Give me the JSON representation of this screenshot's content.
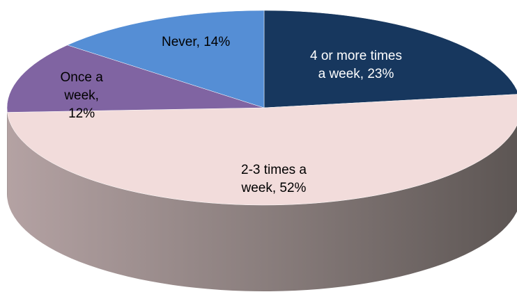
{
  "chart_data": {
    "type": "pie",
    "style": "3d",
    "title": "",
    "slices": [
      {
        "label": "4 or more times a week",
        "value": 23,
        "display": "4 or more times\na week, 23%",
        "color": "#17375e",
        "label_color": "#ffffff"
      },
      {
        "label": "2-3 times a week",
        "value": 52,
        "display": "2-3 times a\nweek, 52%",
        "color": "#f2dcdb",
        "label_color": "#000000"
      },
      {
        "label": "Once a week",
        "value": 12,
        "display": "Once a\nweek,\n12%",
        "color": "#8064a2",
        "label_color": "#000000"
      },
      {
        "label": "Never",
        "value": 14,
        "display": "Never, 14%",
        "color": "#558ed5",
        "label_color": "#000000"
      }
    ]
  }
}
